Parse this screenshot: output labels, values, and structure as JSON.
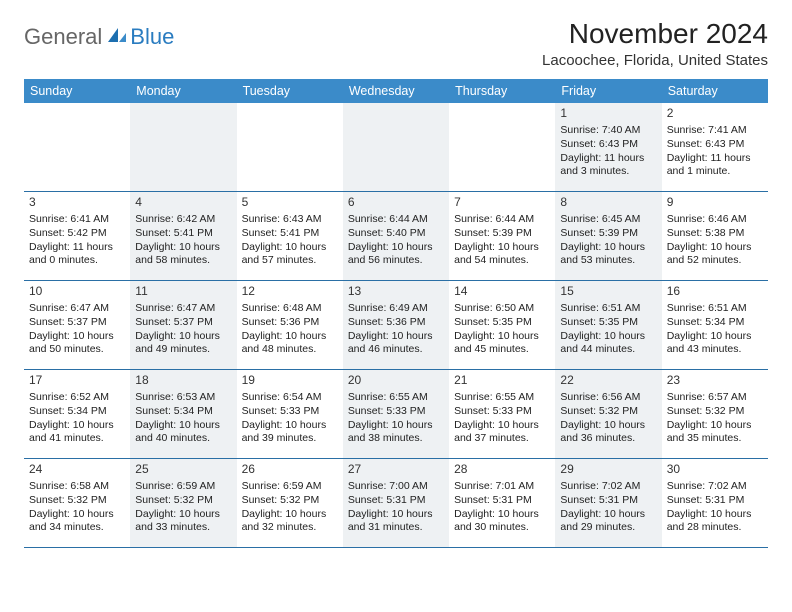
{
  "brand": {
    "word1": "General",
    "word2": "Blue"
  },
  "title": "November 2024",
  "location": "Lacoochee, Florida, United States",
  "colors": {
    "header_bg": "#3b8bc9",
    "header_text": "#ffffff",
    "row_divider": "#2a6fa5",
    "alt_cell_bg": "#eef1f3",
    "text": "#222222",
    "logo_gray": "#666666",
    "logo_blue": "#2a7cc0"
  },
  "day_headers": [
    "Sunday",
    "Monday",
    "Tuesday",
    "Wednesday",
    "Thursday",
    "Friday",
    "Saturday"
  ],
  "weeks": [
    [
      {
        "day": "",
        "alt": false
      },
      {
        "day": "",
        "alt": true
      },
      {
        "day": "",
        "alt": false
      },
      {
        "day": "",
        "alt": true
      },
      {
        "day": "",
        "alt": false
      },
      {
        "day": "1",
        "alt": true,
        "sunrise": "Sunrise: 7:40 AM",
        "sunset": "Sunset: 6:43 PM",
        "daylight": "Daylight: 11 hours and 3 minutes."
      },
      {
        "day": "2",
        "alt": false,
        "sunrise": "Sunrise: 7:41 AM",
        "sunset": "Sunset: 6:43 PM",
        "daylight": "Daylight: 11 hours and 1 minute."
      }
    ],
    [
      {
        "day": "3",
        "alt": false,
        "sunrise": "Sunrise: 6:41 AM",
        "sunset": "Sunset: 5:42 PM",
        "daylight": "Daylight: 11 hours and 0 minutes."
      },
      {
        "day": "4",
        "alt": true,
        "sunrise": "Sunrise: 6:42 AM",
        "sunset": "Sunset: 5:41 PM",
        "daylight": "Daylight: 10 hours and 58 minutes."
      },
      {
        "day": "5",
        "alt": false,
        "sunrise": "Sunrise: 6:43 AM",
        "sunset": "Sunset: 5:41 PM",
        "daylight": "Daylight: 10 hours and 57 minutes."
      },
      {
        "day": "6",
        "alt": true,
        "sunrise": "Sunrise: 6:44 AM",
        "sunset": "Sunset: 5:40 PM",
        "daylight": "Daylight: 10 hours and 56 minutes."
      },
      {
        "day": "7",
        "alt": false,
        "sunrise": "Sunrise: 6:44 AM",
        "sunset": "Sunset: 5:39 PM",
        "daylight": "Daylight: 10 hours and 54 minutes."
      },
      {
        "day": "8",
        "alt": true,
        "sunrise": "Sunrise: 6:45 AM",
        "sunset": "Sunset: 5:39 PM",
        "daylight": "Daylight: 10 hours and 53 minutes."
      },
      {
        "day": "9",
        "alt": false,
        "sunrise": "Sunrise: 6:46 AM",
        "sunset": "Sunset: 5:38 PM",
        "daylight": "Daylight: 10 hours and 52 minutes."
      }
    ],
    [
      {
        "day": "10",
        "alt": false,
        "sunrise": "Sunrise: 6:47 AM",
        "sunset": "Sunset: 5:37 PM",
        "daylight": "Daylight: 10 hours and 50 minutes."
      },
      {
        "day": "11",
        "alt": true,
        "sunrise": "Sunrise: 6:47 AM",
        "sunset": "Sunset: 5:37 PM",
        "daylight": "Daylight: 10 hours and 49 minutes."
      },
      {
        "day": "12",
        "alt": false,
        "sunrise": "Sunrise: 6:48 AM",
        "sunset": "Sunset: 5:36 PM",
        "daylight": "Daylight: 10 hours and 48 minutes."
      },
      {
        "day": "13",
        "alt": true,
        "sunrise": "Sunrise: 6:49 AM",
        "sunset": "Sunset: 5:36 PM",
        "daylight": "Daylight: 10 hours and 46 minutes."
      },
      {
        "day": "14",
        "alt": false,
        "sunrise": "Sunrise: 6:50 AM",
        "sunset": "Sunset: 5:35 PM",
        "daylight": "Daylight: 10 hours and 45 minutes."
      },
      {
        "day": "15",
        "alt": true,
        "sunrise": "Sunrise: 6:51 AM",
        "sunset": "Sunset: 5:35 PM",
        "daylight": "Daylight: 10 hours and 44 minutes."
      },
      {
        "day": "16",
        "alt": false,
        "sunrise": "Sunrise: 6:51 AM",
        "sunset": "Sunset: 5:34 PM",
        "daylight": "Daylight: 10 hours and 43 minutes."
      }
    ],
    [
      {
        "day": "17",
        "alt": false,
        "sunrise": "Sunrise: 6:52 AM",
        "sunset": "Sunset: 5:34 PM",
        "daylight": "Daylight: 10 hours and 41 minutes."
      },
      {
        "day": "18",
        "alt": true,
        "sunrise": "Sunrise: 6:53 AM",
        "sunset": "Sunset: 5:34 PM",
        "daylight": "Daylight: 10 hours and 40 minutes."
      },
      {
        "day": "19",
        "alt": false,
        "sunrise": "Sunrise: 6:54 AM",
        "sunset": "Sunset: 5:33 PM",
        "daylight": "Daylight: 10 hours and 39 minutes."
      },
      {
        "day": "20",
        "alt": true,
        "sunrise": "Sunrise: 6:55 AM",
        "sunset": "Sunset: 5:33 PM",
        "daylight": "Daylight: 10 hours and 38 minutes."
      },
      {
        "day": "21",
        "alt": false,
        "sunrise": "Sunrise: 6:55 AM",
        "sunset": "Sunset: 5:33 PM",
        "daylight": "Daylight: 10 hours and 37 minutes."
      },
      {
        "day": "22",
        "alt": true,
        "sunrise": "Sunrise: 6:56 AM",
        "sunset": "Sunset: 5:32 PM",
        "daylight": "Daylight: 10 hours and 36 minutes."
      },
      {
        "day": "23",
        "alt": false,
        "sunrise": "Sunrise: 6:57 AM",
        "sunset": "Sunset: 5:32 PM",
        "daylight": "Daylight: 10 hours and 35 minutes."
      }
    ],
    [
      {
        "day": "24",
        "alt": false,
        "sunrise": "Sunrise: 6:58 AM",
        "sunset": "Sunset: 5:32 PM",
        "daylight": "Daylight: 10 hours and 34 minutes."
      },
      {
        "day": "25",
        "alt": true,
        "sunrise": "Sunrise: 6:59 AM",
        "sunset": "Sunset: 5:32 PM",
        "daylight": "Daylight: 10 hours and 33 minutes."
      },
      {
        "day": "26",
        "alt": false,
        "sunrise": "Sunrise: 6:59 AM",
        "sunset": "Sunset: 5:32 PM",
        "daylight": "Daylight: 10 hours and 32 minutes."
      },
      {
        "day": "27",
        "alt": true,
        "sunrise": "Sunrise: 7:00 AM",
        "sunset": "Sunset: 5:31 PM",
        "daylight": "Daylight: 10 hours and 31 minutes."
      },
      {
        "day": "28",
        "alt": false,
        "sunrise": "Sunrise: 7:01 AM",
        "sunset": "Sunset: 5:31 PM",
        "daylight": "Daylight: 10 hours and 30 minutes."
      },
      {
        "day": "29",
        "alt": true,
        "sunrise": "Sunrise: 7:02 AM",
        "sunset": "Sunset: 5:31 PM",
        "daylight": "Daylight: 10 hours and 29 minutes."
      },
      {
        "day": "30",
        "alt": false,
        "sunrise": "Sunrise: 7:02 AM",
        "sunset": "Sunset: 5:31 PM",
        "daylight": "Daylight: 10 hours and 28 minutes."
      }
    ]
  ]
}
